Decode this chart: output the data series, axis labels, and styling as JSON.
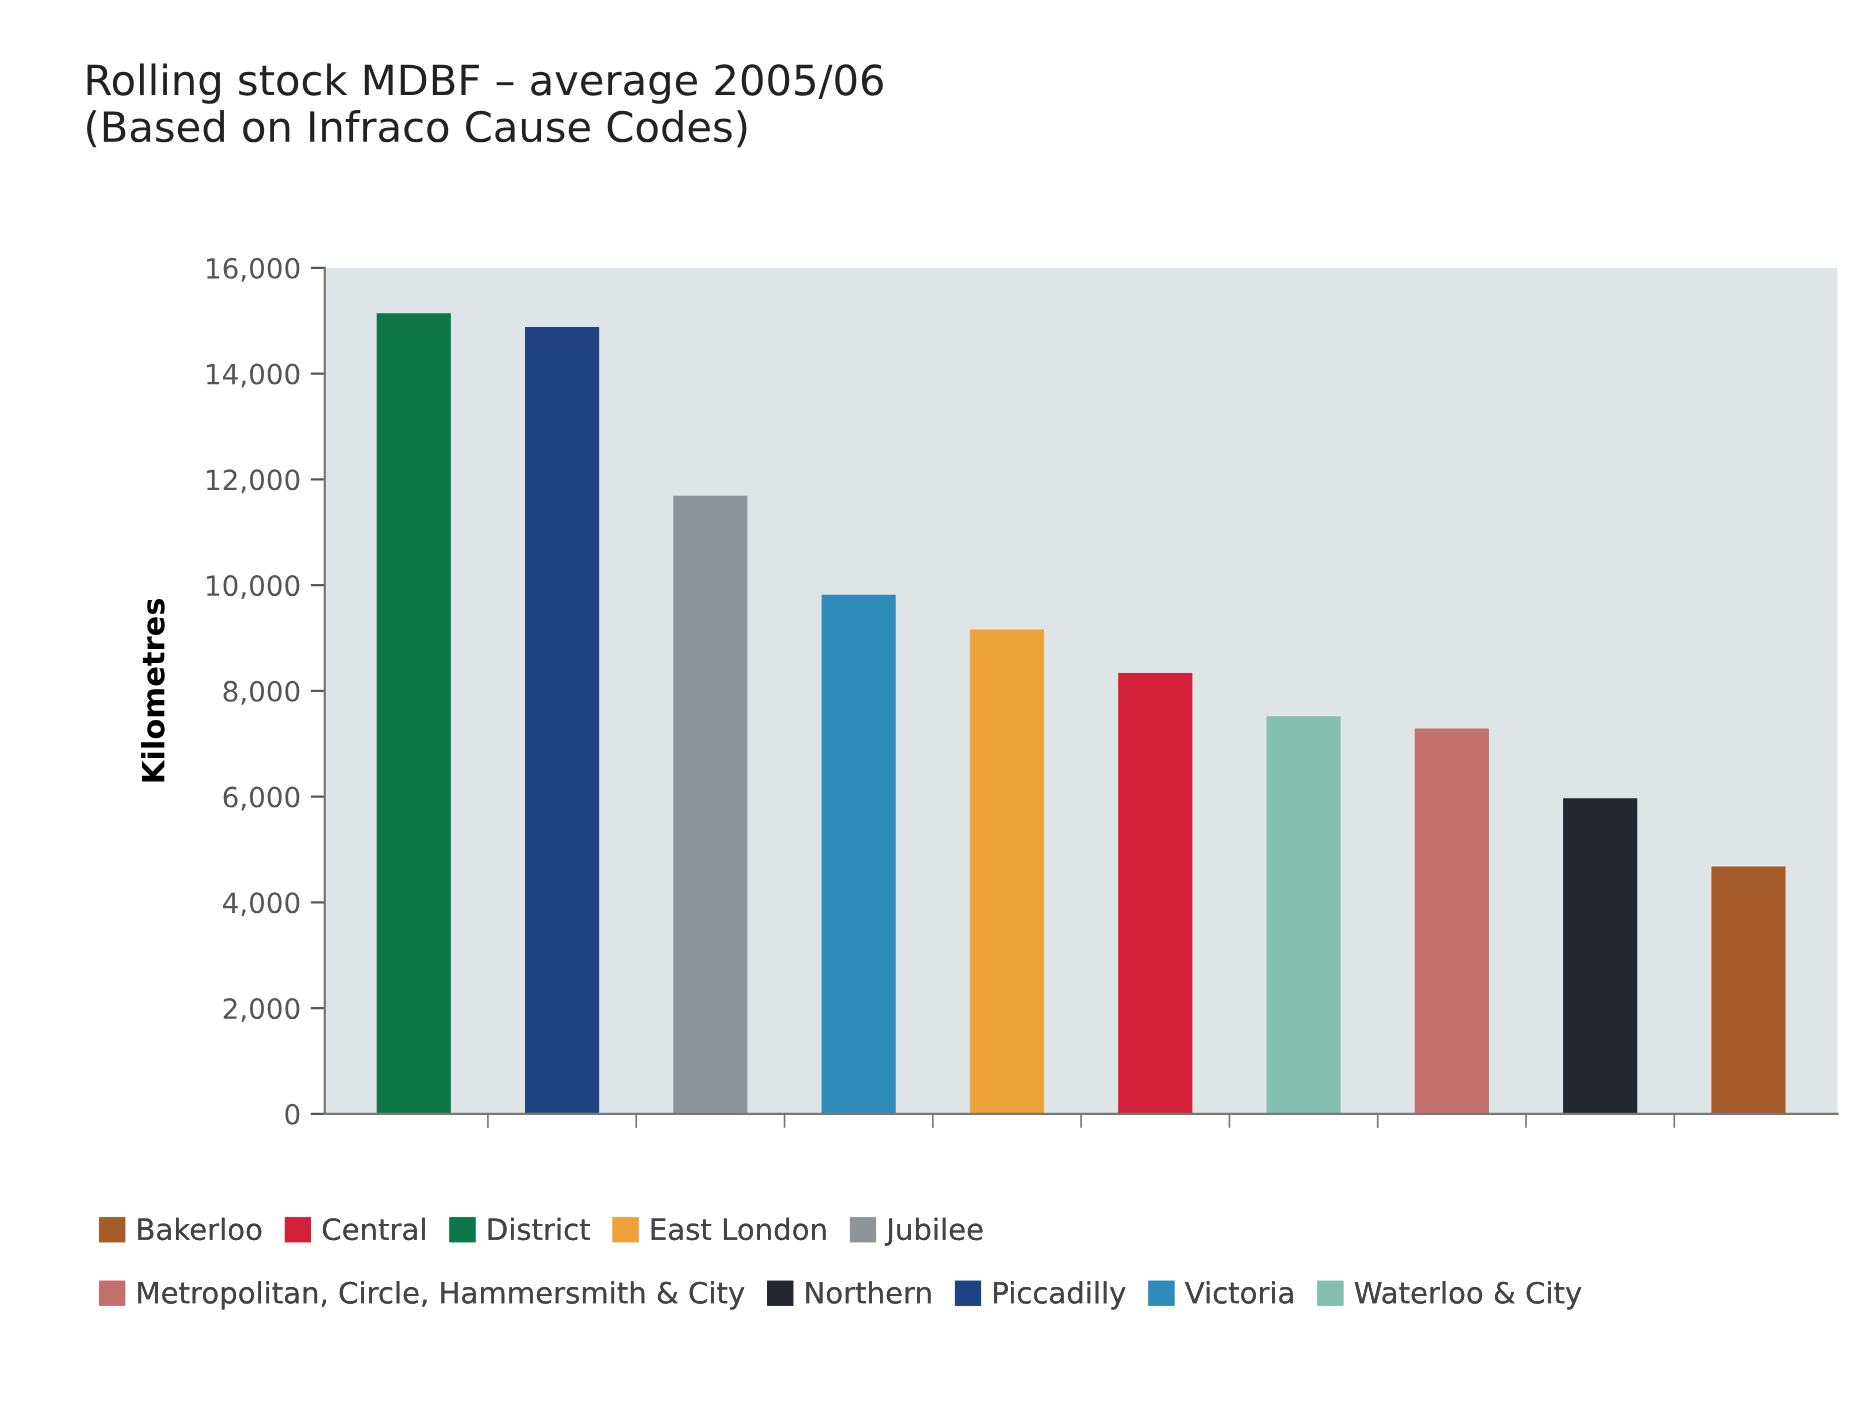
{
  "chart_data": {
    "type": "bar",
    "title": "Rolling stock MDBF – average 2005/06\n(Based on Infraco Cause Codes)",
    "ylabel": "Kilometres",
    "categories": [
      null,
      null,
      null,
      null,
      null,
      null,
      null,
      null,
      null,
      null
    ],
    "stacked": true,
    "series": [
      {
        "name": "Bakerloo",
        "color": "#a65c2a",
        "values": [
          null,
          null,
          null,
          null,
          null,
          null,
          null,
          null,
          null,
          4680
        ]
      },
      {
        "name": "Central",
        "color": "#d42039",
        "values": [
          null,
          null,
          null,
          null,
          null,
          8340,
          null,
          null,
          null,
          null
        ]
      },
      {
        "name": "District",
        "color": "#0e774a",
        "values": [
          15140,
          null,
          null,
          null,
          null,
          null,
          null,
          null,
          null,
          null
        ]
      },
      {
        "name": "East London",
        "color": "#eda33a",
        "values": [
          null,
          null,
          null,
          null,
          9160,
          null,
          null,
          null,
          null,
          null
        ]
      },
      {
        "name": "Jubilee",
        "color": "#8e9599",
        "values": [
          null,
          null,
          11690,
          null,
          null,
          null,
          null,
          null,
          null,
          null
        ]
      },
      {
        "name": "Metropolitan, Circle, Hammersmith & City",
        "color": "#c3706e",
        "values": [
          null,
          null,
          null,
          null,
          null,
          null,
          null,
          7290,
          null,
          null
        ]
      },
      {
        "name": "Northern",
        "color": "#23262c",
        "values": [
          null,
          null,
          null,
          null,
          null,
          null,
          null,
          null,
          5970,
          null
        ]
      },
      {
        "name": "Piccadilly",
        "color": "#1f4481",
        "values": [
          null,
          14880,
          null,
          null,
          null,
          null,
          null,
          null,
          null,
          null
        ]
      },
      {
        "name": "Victoria",
        "color": "#2f8cba",
        "values": [
          null,
          null,
          null,
          9820,
          null,
          null,
          null,
          null,
          null,
          null
        ]
      },
      {
        "name": "Waterloo & City",
        "color": "#84bfb0",
        "values": [
          null,
          null,
          null,
          null,
          null,
          null,
          7520,
          null,
          null,
          null
        ]
      }
    ],
    "ylim": [
      0,
      16000
    ],
    "yticks": [
      {
        "value": 0,
        "label": "0"
      },
      {
        "value": 2000,
        "label": "2,000"
      },
      {
        "value": 4000,
        "label": "4,000"
      },
      {
        "value": 6000,
        "label": "6,000"
      },
      {
        "value": 8000,
        "label": "8,000"
      },
      {
        "value": 10000,
        "label": "10,000"
      },
      {
        "value": 12000,
        "label": "12,000"
      },
      {
        "value": 14000,
        "label": "14,000"
      },
      {
        "value": 16000,
        "label": "16,000"
      }
    ],
    "grid": false,
    "legend": "bottom"
  }
}
